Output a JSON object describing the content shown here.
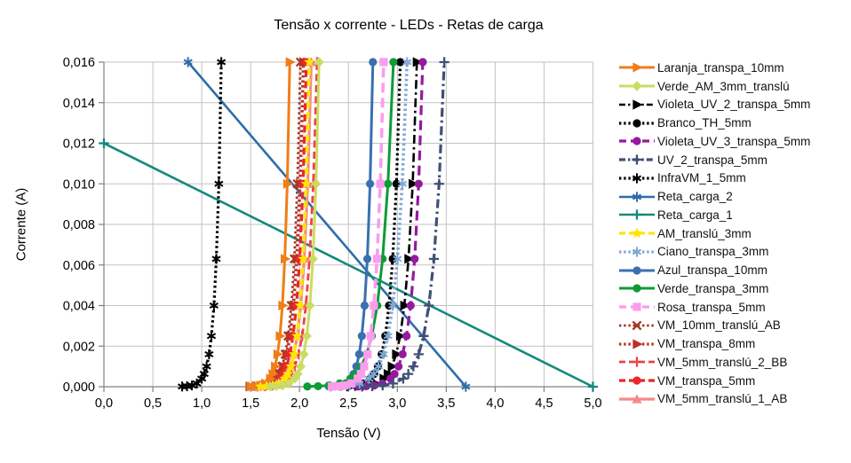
{
  "chart_data": {
    "type": "line",
    "title": "Tensão x corrente - LEDs - Retas de carga",
    "xlabel": "Tensão (V)",
    "ylabel": "Corrente (A)",
    "xlim": [
      0,
      5.0
    ],
    "ylim": [
      0,
      0.016
    ],
    "grid": true,
    "legend_position": "right",
    "xticks": {
      "values": [
        0,
        0.5,
        1.0,
        1.5,
        2.0,
        2.5,
        3.0,
        3.5,
        4.0,
        4.5,
        5.0
      ],
      "labels": [
        "0,0",
        "0,5",
        "1,0",
        "1,5",
        "2,0",
        "2,5",
        "3,0",
        "3,5",
        "4,0",
        "4,5",
        "5,0"
      ]
    },
    "yticks": {
      "values": [
        0,
        0.002,
        0.004,
        0.006,
        0.008,
        0.01,
        0.012,
        0.014,
        0.016
      ],
      "labels": [
        "0,000",
        "0,002",
        "0,004",
        "0,006",
        "0,008",
        "0,010",
        "0,012",
        "0,014",
        "0,016"
      ]
    },
    "currents_A": [
      1e-05,
      2.5e-05,
      6.3e-05,
      0.00016,
      0.0004,
      0.00063,
      0.001,
      0.0016,
      0.0025,
      0.004,
      0.0063,
      0.01,
      0.016
    ],
    "series": [
      {
        "name": "Laranja_transpa_10mm",
        "color": "#F07D17",
        "line": "solid",
        "width": 3,
        "marker": "triangle-right",
        "volts": [
          1.5,
          1.55,
          1.6,
          1.65,
          1.7,
          1.725,
          1.75,
          1.775,
          1.799,
          1.825,
          1.849,
          1.875,
          1.9
        ]
      },
      {
        "name": "Verde_AM_3mm_translú",
        "color": "#CBDC62",
        "line": "solid",
        "width": 3,
        "marker": "diamond",
        "volts": [
          1.7,
          1.762,
          1.825,
          1.888,
          1.95,
          1.981,
          2.012,
          2.044,
          2.074,
          2.106,
          2.137,
          2.168,
          2.2
        ]
      },
      {
        "name": "Violeta_UV_2_transpa_5mm",
        "color": "#000000",
        "line": "dashdot",
        "width": 2.6,
        "marker": "triangle-right",
        "volts": [
          2.52,
          2.604,
          2.69,
          2.776,
          2.86,
          2.902,
          2.944,
          2.988,
          3.029,
          3.072,
          3.114,
          3.157,
          3.2
        ]
      },
      {
        "name": "Branco_TH_5mm",
        "color": "#000000",
        "line": "dot",
        "width": 3.2,
        "marker": "circle",
        "volts": [
          2.42,
          2.496,
          2.572,
          2.649,
          2.725,
          2.763,
          2.801,
          2.84,
          2.877,
          2.915,
          2.953,
          2.991,
          3.03
        ]
      },
      {
        "name": "Violeta_UV_3_transpa_5mm",
        "color": "#941A9E",
        "line": "longdash",
        "width": 3.2,
        "marker": "circle",
        "volts": [
          2.6,
          2.682,
          2.765,
          2.848,
          2.93,
          2.971,
          3.012,
          3.054,
          3.094,
          3.136,
          3.177,
          3.218,
          3.26
        ]
      },
      {
        "name": "UV_2_transpa_5mm",
        "color": "#404F75",
        "line": "dashdot",
        "width": 3.2,
        "marker": "plus",
        "volts": [
          2.64,
          2.744,
          2.85,
          2.956,
          3.06,
          3.112,
          3.164,
          3.218,
          3.269,
          3.322,
          3.374,
          3.427,
          3.48
        ]
      },
      {
        "name": "InfraVM_1_5mm",
        "color": "#000000",
        "line": "dot",
        "width": 3.2,
        "marker": "asterisk",
        "volts": [
          0.8,
          0.85,
          0.9,
          0.95,
          1.0,
          1.025,
          1.05,
          1.075,
          1.099,
          1.125,
          1.149,
          1.175,
          1.2
        ]
      },
      {
        "name": "Reta_carga_2",
        "color": "#2E6DA8",
        "line": "solid",
        "width": 2.6,
        "marker": "asterisk",
        "points": [
          [
            0.86,
            0.016
          ],
          [
            3.7,
            0.0
          ]
        ]
      },
      {
        "name": "Reta_carga_1",
        "color": "#15897B",
        "line": "solid",
        "width": 2.6,
        "marker": "plus",
        "points": [
          [
            0.0,
            0.012
          ],
          [
            5.0,
            0.0
          ]
        ]
      },
      {
        "name": "AM_translú_3mm",
        "color": "#FFE600",
        "line": "dash",
        "width": 3.6,
        "marker": "star",
        "volts": [
          1.6,
          1.662,
          1.725,
          1.788,
          1.85,
          1.881,
          1.912,
          1.944,
          1.974,
          2.006,
          2.037,
          2.068,
          2.1
        ]
      },
      {
        "name": "Ciano_transpa_3mm",
        "color": "#7FA8D6",
        "line": "dot",
        "width": 3.6,
        "marker": "asterisk",
        "volts": [
          2.32,
          2.417,
          2.515,
          2.613,
          2.71,
          2.758,
          2.807,
          2.857,
          2.904,
          2.953,
          3.001,
          3.05,
          3.1
        ]
      },
      {
        "name": "Azul_transpa_10mm",
        "color": "#3A6FB0",
        "line": "solid",
        "width": 3,
        "marker": "circle",
        "volts": [
          2.3,
          2.356,
          2.412,
          2.469,
          2.525,
          2.553,
          2.581,
          2.61,
          2.637,
          2.665,
          2.693,
          2.721,
          2.75
        ]
      },
      {
        "name": "Verde_transpa_3mm",
        "color": "#0D9B38",
        "line": "solid",
        "width": 3,
        "marker": "circle",
        "volts": [
          2.08,
          2.189,
          2.3,
          2.411,
          2.52,
          2.574,
          2.629,
          2.685,
          2.739,
          2.795,
          2.849,
          2.904,
          2.96
        ]
      },
      {
        "name": "Rosa_transpa_5mm",
        "color": "#FB9CEF",
        "line": "longdash",
        "width": 3.6,
        "marker": "square",
        "volts": [
          2.33,
          2.396,
          2.462,
          2.529,
          2.595,
          2.628,
          2.661,
          2.695,
          2.727,
          2.76,
          2.793,
          2.826,
          2.86
        ]
      },
      {
        "name": "VM_10mm_translú_AB",
        "color": "#A23822",
        "line": "dot",
        "width": 2.8,
        "marker": "x",
        "volts": [
          1.51,
          1.572,
          1.635,
          1.698,
          1.76,
          1.791,
          1.822,
          1.854,
          1.884,
          1.916,
          1.947,
          1.978,
          2.01
        ]
      },
      {
        "name": "VM_transpa_8mm",
        "color": "#BE3026",
        "line": "dot",
        "width": 3.6,
        "marker": "triangle-right",
        "volts": [
          1.49,
          1.558,
          1.627,
          1.697,
          1.765,
          1.799,
          1.833,
          1.868,
          1.902,
          1.937,
          1.971,
          2.005,
          2.04
        ]
      },
      {
        "name": "VM_5mm_translú_2_BB",
        "color": "#EF4146",
        "line": "dash",
        "width": 2.8,
        "marker": "plus",
        "volts": [
          1.57,
          1.646,
          1.722,
          1.799,
          1.875,
          1.913,
          1.951,
          1.99,
          2.027,
          2.065,
          2.103,
          2.141,
          2.18
        ]
      },
      {
        "name": "VM_transpa_5mm",
        "color": "#E82829",
        "line": "dash",
        "width": 3.2,
        "marker": "circle",
        "volts": [
          1.53,
          1.597,
          1.665,
          1.733,
          1.8,
          1.833,
          1.867,
          1.902,
          1.934,
          1.969,
          2.002,
          2.036,
          2.07
        ]
      },
      {
        "name": "VM_5mm_translú_1_AB",
        "color": "#F28B8B",
        "line": "solid",
        "width": 3.2,
        "marker": "triangle-up",
        "volts": [
          1.55,
          1.621,
          1.692,
          1.764,
          1.835,
          1.87,
          1.906,
          1.942,
          1.977,
          2.013,
          2.048,
          2.084,
          2.12
        ]
      }
    ]
  }
}
